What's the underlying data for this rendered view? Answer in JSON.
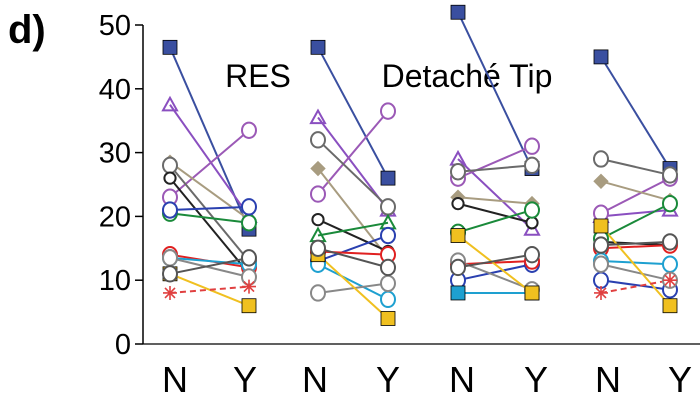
{
  "panel_letter": "d)",
  "chart_data": {
    "type": "line",
    "annotations": [
      "RES",
      "Detaché Tip"
    ],
    "categories": [
      "N",
      "Y",
      "N",
      "Y",
      "N",
      "Y",
      "N",
      "Y"
    ],
    "ylim": [
      0,
      50
    ],
    "yticks": [
      0,
      10,
      20,
      30,
      40,
      50
    ],
    "grid": false,
    "groups": [
      {
        "pairs": [
          {
            "color": "#3a4fa0",
            "marker": "square",
            "values": [
              46.5,
              18
            ]
          },
          {
            "color": "#8a4fc0",
            "marker": "triangle",
            "values": [
              37.5,
              20
            ]
          },
          {
            "color": "#9b59b6",
            "marker": "circle",
            "values": [
              23,
              33.5
            ]
          },
          {
            "color": "#a89c80",
            "marker": "diamond",
            "values": [
              28.5,
              19.5
            ]
          },
          {
            "color": "#6a6a6a",
            "marker": "circle",
            "values": [
              28,
              13
            ]
          },
          {
            "color": "#222222",
            "marker": "heart",
            "values": [
              26,
              11
            ]
          },
          {
            "color": "#1a8a3a",
            "marker": "circle",
            "values": [
              20.5,
              19
            ]
          },
          {
            "color": "#2a40b0",
            "marker": "circle",
            "values": [
              21,
              21.5
            ]
          },
          {
            "color": "#e02020",
            "marker": "circle",
            "values": [
              14,
              12
            ]
          },
          {
            "color": "#1ea0d0",
            "marker": "circle",
            "values": [
              13.5,
              12.5
            ]
          },
          {
            "color": "#888888",
            "marker": "circle",
            "values": [
              13.5,
              10.5
            ]
          },
          {
            "color": "#f0c020",
            "marker": "square",
            "values": [
              11,
              6
            ]
          },
          {
            "color": "#e04040",
            "marker": "star",
            "values": [
              8,
              9
            ]
          },
          {
            "color": "#555555",
            "marker": "circle",
            "values": [
              11,
              13.5
            ]
          }
        ]
      },
      {
        "pairs": [
          {
            "color": "#3a4fa0",
            "marker": "square",
            "values": [
              46.5,
              26
            ]
          },
          {
            "color": "#8a4fc0",
            "marker": "triangle",
            "values": [
              35.5,
              21
            ]
          },
          {
            "color": "#9b59b6",
            "marker": "circle",
            "values": [
              23.5,
              36.5
            ]
          },
          {
            "color": "#a89c80",
            "marker": "diamond",
            "values": [
              27.5,
              13.5
            ]
          },
          {
            "color": "#6a6a6a",
            "marker": "circle",
            "values": [
              32,
              21.5
            ]
          },
          {
            "color": "#222222",
            "marker": "heart",
            "values": [
              19.5,
              14.5
            ]
          },
          {
            "color": "#1a8a3a",
            "marker": "triangle",
            "values": [
              17,
              19
            ]
          },
          {
            "color": "#2a40b0",
            "marker": "circle",
            "values": [
              13,
              17
            ]
          },
          {
            "color": "#e02020",
            "marker": "circle",
            "values": [
              14.5,
              14
            ]
          },
          {
            "color": "#1ea0d0",
            "marker": "circle",
            "values": [
              12.5,
              7
            ]
          },
          {
            "color": "#888888",
            "marker": "circle",
            "values": [
              8,
              9.5
            ]
          },
          {
            "color": "#f0c020",
            "marker": "square",
            "values": [
              14,
              4
            ]
          },
          {
            "color": "#555555",
            "marker": "circle",
            "values": [
              15,
              12
            ]
          }
        ]
      },
      {
        "pairs": [
          {
            "color": "#3a4fa0",
            "marker": "square",
            "values": [
              52,
              27.5
            ]
          },
          {
            "color": "#8a4fc0",
            "marker": "triangle",
            "values": [
              29,
              18
            ]
          },
          {
            "color": "#9b59b6",
            "marker": "circle",
            "values": [
              26,
              31
            ]
          },
          {
            "color": "#a89c80",
            "marker": "diamond",
            "values": [
              23,
              22
            ]
          },
          {
            "color": "#6a6a6a",
            "marker": "circle",
            "values": [
              27,
              28
            ]
          },
          {
            "color": "#222222",
            "marker": "heart",
            "values": [
              22,
              19
            ]
          },
          {
            "color": "#1a8a3a",
            "marker": "circle",
            "values": [
              17.5,
              21
            ]
          },
          {
            "color": "#2a40b0",
            "marker": "circle",
            "values": [
              10,
              12.5
            ]
          },
          {
            "color": "#e02020",
            "marker": "circle",
            "values": [
              12.5,
              13
            ]
          },
          {
            "color": "#1ea0d0",
            "marker": "square",
            "values": [
              8,
              8
            ]
          },
          {
            "color": "#888888",
            "marker": "circle",
            "values": [
              13,
              8.5
            ]
          },
          {
            "color": "#f0c020",
            "marker": "square",
            "values": [
              17,
              8
            ]
          },
          {
            "color": "#555555",
            "marker": "circle",
            "values": [
              12,
              14
            ]
          }
        ]
      },
      {
        "pairs": [
          {
            "color": "#3a4fa0",
            "marker": "square",
            "values": [
              45,
              27.5
            ]
          },
          {
            "color": "#8a4fc0",
            "marker": "triangle",
            "values": [
              20,
              21
            ]
          },
          {
            "color": "#9b59b6",
            "marker": "circle",
            "values": [
              20.5,
              26
            ]
          },
          {
            "color": "#a89c80",
            "marker": "diamond",
            "values": [
              25.5,
              22.5
            ]
          },
          {
            "color": "#6a6a6a",
            "marker": "circle",
            "values": [
              29,
              26.5
            ]
          },
          {
            "color": "#222222",
            "marker": "heart",
            "values": [
              16,
              15.5
            ]
          },
          {
            "color": "#1a8a3a",
            "marker": "circle",
            "values": [
              16.5,
              22
            ]
          },
          {
            "color": "#2a40b0",
            "marker": "circle",
            "values": [
              10,
              8.5
            ]
          },
          {
            "color": "#e02020",
            "marker": "circle",
            "values": [
              15,
              15.5
            ]
          },
          {
            "color": "#1ea0d0",
            "marker": "circle",
            "values": [
              13,
              12.5
            ]
          },
          {
            "color": "#888888",
            "marker": "circle",
            "values": [
              12.5,
              10
            ]
          },
          {
            "color": "#f0c020",
            "marker": "square",
            "values": [
              18.5,
              6
            ]
          },
          {
            "color": "#e04040",
            "marker": "star",
            "values": [
              8,
              10
            ]
          },
          {
            "color": "#555555",
            "marker": "circle",
            "values": [
              15.5,
              16
            ]
          }
        ]
      }
    ]
  }
}
